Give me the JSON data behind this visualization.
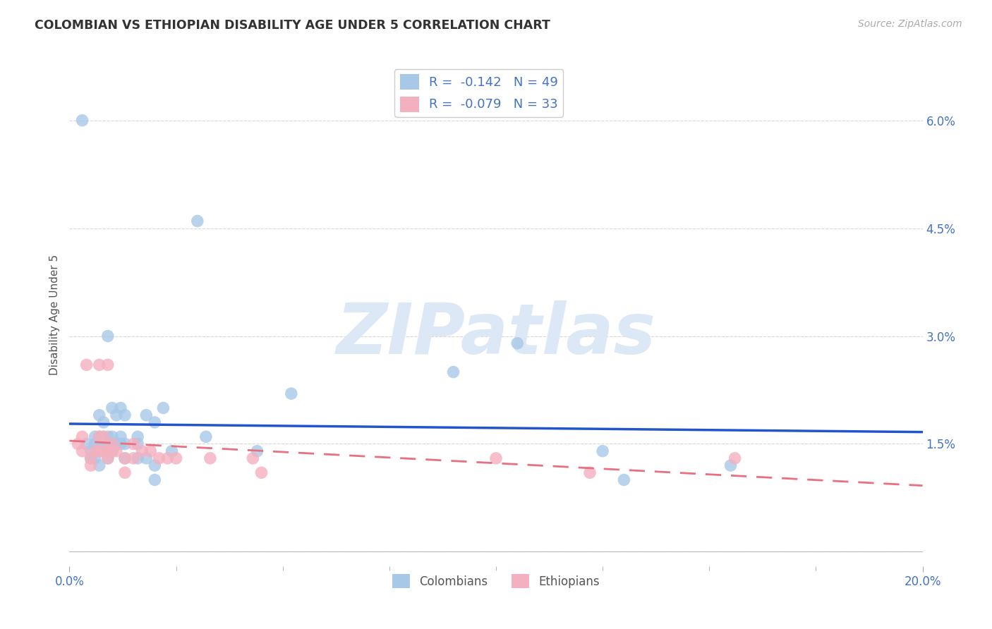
{
  "title": "COLOMBIAN VS ETHIOPIAN DISABILITY AGE UNDER 5 CORRELATION CHART",
  "source": "Source: ZipAtlas.com",
  "ylabel": "Disability Age Under 5",
  "xlim": [
    0.0,
    0.2
  ],
  "ylim": [
    -0.002,
    0.068
  ],
  "xtick_positions": [
    0.0,
    0.2
  ],
  "xtick_labels": [
    "0.0%",
    "20.0%"
  ],
  "yticks": [
    0.0,
    0.015,
    0.03,
    0.045,
    0.06
  ],
  "ytick_labels": [
    "",
    "1.5%",
    "3.0%",
    "4.5%",
    "6.0%"
  ],
  "colombian_r": "-0.142",
  "colombian_n": "49",
  "ethiopian_r": "-0.079",
  "ethiopian_n": "33",
  "colombian_color": "#a8c8e8",
  "ethiopian_color": "#f4b0be",
  "colombian_line_color": "#2255cc",
  "ethiopian_line_color": "#e87080",
  "watermark_text": "ZIPatlas",
  "background_color": "#ffffff",
  "grid_color": "#d8d8d8",
  "colombian_points": [
    [
      0.003,
      0.06
    ],
    [
      0.004,
      0.015
    ],
    [
      0.005,
      0.014
    ],
    [
      0.005,
      0.013
    ],
    [
      0.006,
      0.016
    ],
    [
      0.006,
      0.015
    ],
    [
      0.006,
      0.013
    ],
    [
      0.007,
      0.019
    ],
    [
      0.007,
      0.016
    ],
    [
      0.007,
      0.015
    ],
    [
      0.007,
      0.012
    ],
    [
      0.008,
      0.018
    ],
    [
      0.008,
      0.016
    ],
    [
      0.009,
      0.03
    ],
    [
      0.009,
      0.016
    ],
    [
      0.009,
      0.015
    ],
    [
      0.009,
      0.014
    ],
    [
      0.009,
      0.013
    ],
    [
      0.01,
      0.02
    ],
    [
      0.01,
      0.016
    ],
    [
      0.01,
      0.015
    ],
    [
      0.01,
      0.014
    ],
    [
      0.011,
      0.019
    ],
    [
      0.011,
      0.015
    ],
    [
      0.012,
      0.02
    ],
    [
      0.012,
      0.016
    ],
    [
      0.012,
      0.015
    ],
    [
      0.013,
      0.019
    ],
    [
      0.013,
      0.015
    ],
    [
      0.013,
      0.013
    ],
    [
      0.016,
      0.016
    ],
    [
      0.016,
      0.015
    ],
    [
      0.016,
      0.013
    ],
    [
      0.018,
      0.019
    ],
    [
      0.018,
      0.013
    ],
    [
      0.02,
      0.018
    ],
    [
      0.02,
      0.012
    ],
    [
      0.02,
      0.01
    ],
    [
      0.022,
      0.02
    ],
    [
      0.024,
      0.014
    ],
    [
      0.03,
      0.046
    ],
    [
      0.032,
      0.016
    ],
    [
      0.044,
      0.014
    ],
    [
      0.052,
      0.022
    ],
    [
      0.09,
      0.025
    ],
    [
      0.105,
      0.029
    ],
    [
      0.125,
      0.014
    ],
    [
      0.13,
      0.01
    ],
    [
      0.155,
      0.012
    ]
  ],
  "ethiopian_points": [
    [
      0.002,
      0.015
    ],
    [
      0.003,
      0.016
    ],
    [
      0.003,
      0.014
    ],
    [
      0.004,
      0.026
    ],
    [
      0.005,
      0.013
    ],
    [
      0.005,
      0.012
    ],
    [
      0.006,
      0.014
    ],
    [
      0.007,
      0.026
    ],
    [
      0.007,
      0.016
    ],
    [
      0.007,
      0.014
    ],
    [
      0.008,
      0.016
    ],
    [
      0.008,
      0.014
    ],
    [
      0.009,
      0.026
    ],
    [
      0.009,
      0.014
    ],
    [
      0.009,
      0.013
    ],
    [
      0.01,
      0.015
    ],
    [
      0.01,
      0.014
    ],
    [
      0.011,
      0.014
    ],
    [
      0.013,
      0.013
    ],
    [
      0.013,
      0.011
    ],
    [
      0.015,
      0.015
    ],
    [
      0.015,
      0.013
    ],
    [
      0.017,
      0.014
    ],
    [
      0.019,
      0.014
    ],
    [
      0.021,
      0.013
    ],
    [
      0.023,
      0.013
    ],
    [
      0.025,
      0.013
    ],
    [
      0.033,
      0.013
    ],
    [
      0.043,
      0.013
    ],
    [
      0.045,
      0.011
    ],
    [
      0.1,
      0.013
    ],
    [
      0.122,
      0.011
    ],
    [
      0.156,
      0.013
    ]
  ]
}
